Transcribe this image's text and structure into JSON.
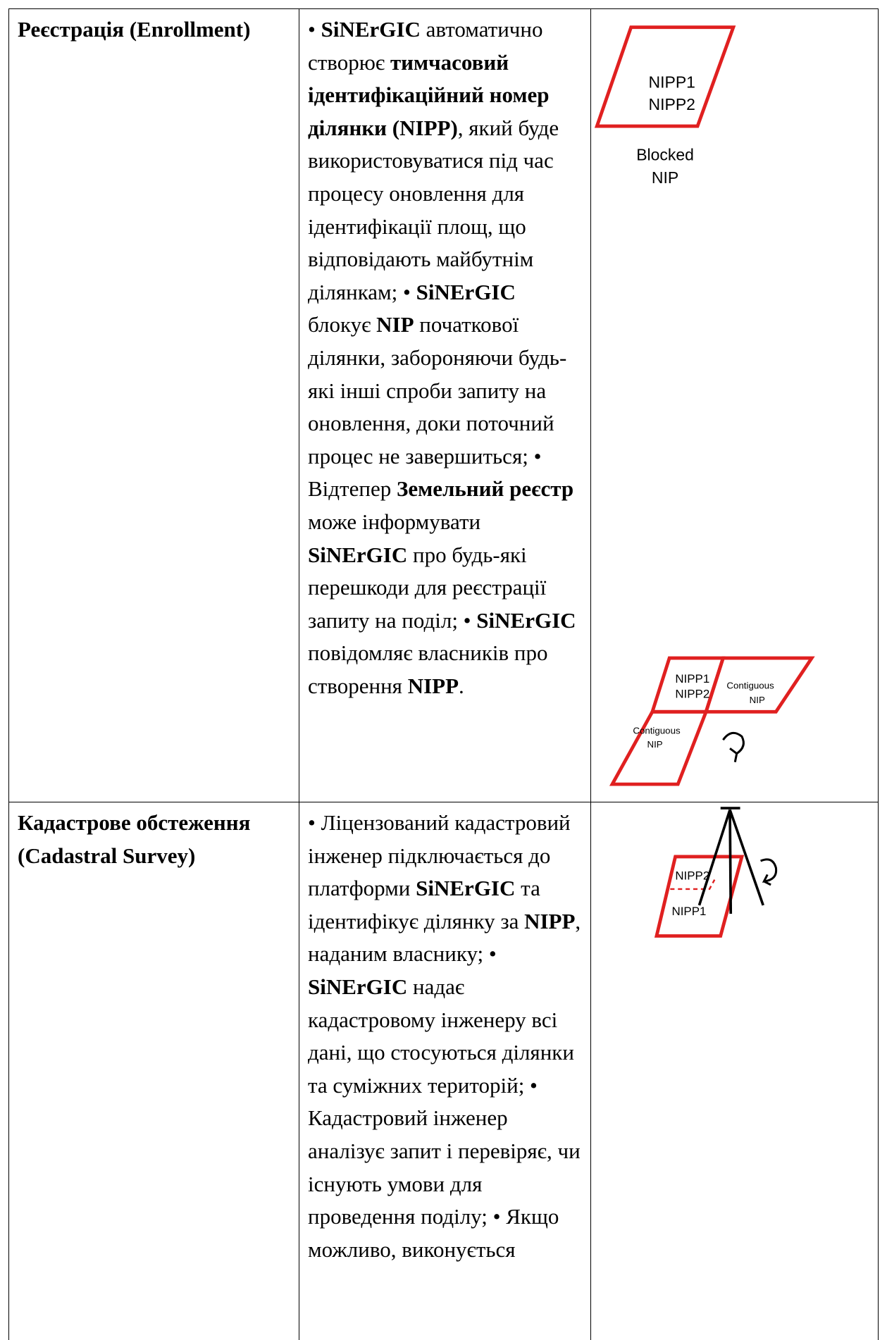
{
  "table": {
    "rows": [
      {
        "stage": "Реєстрація (Enrollment)",
        "description": [
          {
            "text": "• "
          },
          {
            "text": "SiNErGIC",
            "bold": true
          },
          {
            "text": " автоматично створює "
          },
          {
            "text": "тимчасовий ідентифікаційний номер ділянки (NIPP)",
            "bold": true
          },
          {
            "text": ", який буде використовуватися під час процесу оновлення для ідентифікації площ, що відповідають майбутнім ділянкам; • "
          },
          {
            "text": "SiNErGIC",
            "bold": true
          },
          {
            "text": " блокує "
          },
          {
            "text": "NIP",
            "bold": true
          },
          {
            "text": " початкової ділянки, забороняючи будь-які інші спроби запиту на оновлення, доки поточний процес не завершиться; • Відтепер "
          },
          {
            "text": "Земельний реєстр",
            "bold": true
          },
          {
            "text": " може інформувати "
          },
          {
            "text": "SiNErGIC",
            "bold": true
          },
          {
            "text": " про будь-які перешкоди для реєстрації запиту на поділ; • "
          },
          {
            "text": "SiNErGIC",
            "bold": true
          },
          {
            "text": " повідомляє власників про створення "
          },
          {
            "text": "NIPP",
            "bold": true
          },
          {
            "text": "."
          }
        ],
        "diagram_labels": [
          "NIPP1",
          "NIPP2",
          "Blocked",
          "NIP"
        ]
      },
      {
        "stage": "Кадастрове обстеження (Cadastral Survey)",
        "description": [
          {
            "text": "• Ліцензований кадастровий інженер підключається до платформи "
          },
          {
            "text": "SiNErGIC",
            "bold": true
          },
          {
            "text": " та ідентифікує ділянку за "
          },
          {
            "text": "NIPP",
            "bold": true
          },
          {
            "text": ", наданим власнику; • "
          },
          {
            "text": "SiNErGIC",
            "bold": true
          },
          {
            "text": " надає кадастровому інженеру всі дані, що стосуються ділянки та суміжних територій; • Кадастровий інженер аналізує запит і перевіряє, чи існують умови для проведення поділу; • Якщо можливо, виконується"
          }
        ],
        "diagram_labels": [
          "NIPP1",
          "NIPP2",
          "Contiguous",
          "NIP",
          "Contiguous",
          "NIP",
          "NIPP2",
          "NIPP1"
        ]
      }
    ]
  }
}
